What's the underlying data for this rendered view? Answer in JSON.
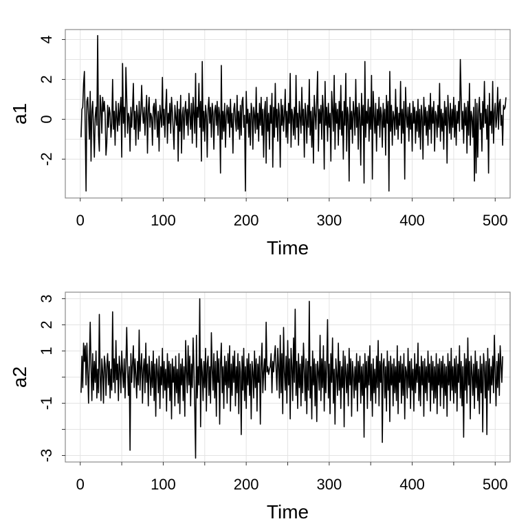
{
  "chart_data": [
    {
      "type": "line",
      "title": "",
      "xlabel": "Time",
      "ylabel": "a1",
      "xlim": [
        -18,
        518
      ],
      "ylim": [
        -3.95,
        4.5
      ],
      "xticks": [
        0,
        100,
        200,
        300,
        400,
        500
      ],
      "xtick_labels": [
        "0",
        "100",
        "200",
        "300",
        "400",
        "500"
      ],
      "yticks": [
        -2,
        0,
        2,
        4
      ],
      "ytick_labels": [
        "-2",
        "0",
        "2",
        "4"
      ],
      "grid": true,
      "series": [
        {
          "color": "#000000",
          "x_start": 1,
          "x_step": 1,
          "values": [
            -0.9,
            0.5,
            0.6,
            1.8,
            2.4,
            -0.5,
            -3.6,
            0.9,
            1.1,
            0.2,
            -1.0,
            1.4,
            -2.1,
            0.4,
            0.9,
            -0.5,
            -1.9,
            0.1,
            0.6,
            -0.3,
            4.2,
            -0.8,
            -1.6,
            1.2,
            0.6,
            -0.7,
            1.1,
            0.4,
            0.9,
            0.2,
            -1.8,
            -1.2,
            0.7,
            -0.4,
            0.6,
            0.3,
            -0.9,
            -0.2,
            2.0,
            -0.5,
            0.4,
            -1.3,
            0.9,
            0.1,
            -0.6,
            0.8,
            -0.3,
            0.5,
            1.1,
            -1.9,
            2.8,
            -0.2,
            0.6,
            -0.9,
            2.6,
            1.1,
            -0.7,
            0.3,
            0.1,
            -1.6,
            0.6,
            -0.4,
            0.5,
            1.8,
            -0.5,
            0.4,
            -1.3,
            0.7,
            0.2,
            -1.0,
            0.9,
            -0.6,
            0.3,
            1.7,
            0.4,
            -0.2,
            0.6,
            -0.8,
            0.3,
            1.2,
            -1.7,
            0.5,
            1.1,
            -0.4,
            0.3,
            0.1,
            -1.3,
            0.6,
            0.8,
            -0.5,
            1.0,
            0.2,
            -0.9,
            0.4,
            -1.6,
            0.7,
            0.1,
            -0.4,
            2.1,
            -0.3,
            0.5,
            -0.9,
            0.6,
            1.5,
            -1.2,
            0.3,
            -0.2,
            0.8,
            -0.7,
            1.1,
            0.4,
            -0.5,
            -1.5,
            0.7,
            0.1,
            -0.3,
            0.9,
            -2.1,
            0.5,
            -0.6,
            1.2,
            -1.7,
            0.2,
            0.6,
            -1.0,
            0.4,
            0.9,
            -0.3,
            0.5,
            -0.8,
            1.3,
            0.2,
            -0.5,
            0.8,
            -1.2,
            1.1,
            0.3,
            -0.7,
            2.3,
            -1.4,
            0.6,
            0.1,
            1.8,
            -0.4,
            0.9,
            -2.1,
            2.9,
            -0.6,
            0.4,
            -1.1,
            0.7,
            0.2,
            -1.9,
            0.5,
            1.1,
            -0.2,
            0.6,
            -0.9,
            0.8,
            0.3,
            -1.5,
            0.4,
            0.7,
            -0.3,
            0.9,
            -0.8,
            0.6,
            0.2,
            -2.7,
            2.7,
            -1.0,
            0.4,
            -0.6,
            0.8,
            -1.4,
            0.2,
            0.7,
            -0.2,
            0.6,
            -0.9,
            1.0,
            -0.4,
            0.3,
            -1.7,
            0.5,
            0.8,
            -0.1,
            -0.6,
            1.2,
            -0.5,
            0.4,
            -1.0,
            0.7,
            -0.8,
            0.9,
            1.1,
            -0.4,
            0.2,
            -3.6,
            1.4,
            -0.2,
            0.5,
            -0.9,
            0.3,
            -1.3,
            0.8,
            0.4,
            -1.5,
            0.6,
            0.2,
            -0.7,
            1.6,
            -0.5,
            0.3,
            -1.1,
            0.8,
            -0.3,
            1.1,
            -0.8,
            0.5,
            -1.9,
            0.4,
            0.9,
            -2.2,
            1.1,
            -0.6,
            0.3,
            -1.5,
            0.7,
            -0.2,
            1.3,
            -2.4,
            0.6,
            -0.9,
            1.8,
            -0.4,
            0.5,
            -1.1,
            0.8,
            0.2,
            -2.4,
            1.0,
            -0.3,
            0.7,
            -0.6,
            0.2,
            1.5,
            -0.9,
            0.4,
            -1.2,
            0.8,
            -0.2,
            2.3,
            -1.4,
            0.5,
            0.2,
            -0.8,
            0.6,
            -1.0,
            2.2,
            -0.4,
            0.3,
            -1.3,
            0.9,
            0.1,
            -0.7,
            1.6,
            -0.3,
            0.5,
            -1.9,
            0.8,
            0.2,
            -1.2,
            0.7,
            -0.4,
            2.0,
            -0.8,
            0.4,
            -1.4,
            0.6,
            -2.2,
            1.2,
            0.3,
            -0.5,
            0.9,
            2.4,
            -1.6,
            0.5,
            -0.2,
            0.7,
            -1.0,
            1.2,
            0.4,
            -2.5,
            1.9,
            -0.3,
            0.6,
            -1.1,
            0.8,
            -0.4,
            0.3,
            -2.1,
            1.4,
            0.5,
            -0.6,
            2.2,
            -1.5,
            0.8,
            -0.2,
            0.5,
            -1.3,
            0.9,
            -0.5,
            1.7,
            -0.8,
            0.4,
            -2.0,
            0.9,
            -0.3,
            2.3,
            -1.6,
            0.6,
            0.2,
            -3.1,
            1.1,
            -0.5,
            0.4,
            -1.2,
            0.9,
            0.3,
            -0.8,
            2.0,
            -0.4,
            0.6,
            -1.5,
            0.8,
            0.1,
            -2.3,
            1.3,
            -0.3,
            0.7,
            -3.2,
            2.9,
            -0.9,
            0.4,
            -0.2,
            1.0,
            -1.1,
            0.6,
            -0.5,
            2.2,
            -3.0,
            1.4,
            0.2,
            -0.7,
            0.8,
            -1.6,
            0.5,
            -0.3,
            1.1,
            -0.9,
            0.6,
            0.2,
            -1.4,
            0.8,
            -0.4,
            0.5,
            -1.8,
            1.2,
            -0.2,
            0.9,
            -3.6,
            2.4,
            -0.6,
            0.7,
            -1.3,
            0.4,
            0.1,
            -0.8,
            1.5,
            -0.5,
            0.6,
            -1.0,
            0.3,
            -0.3,
            1.9,
            -1.2,
            0.5,
            -0.7,
            0.9,
            -3.0,
            1.6,
            0.2,
            -0.4,
            0.6,
            -1.1,
            0.8,
            -0.5,
            0.3,
            -1.6,
            0.9,
            -0.2,
            0.6,
            -1.2,
            0.4,
            -0.6,
            1.0,
            -0.9,
            0.5,
            -1.5,
            0.7,
            0.1,
            -2.0,
            1.1,
            -0.3,
            0.6,
            -0.8,
            0.4,
            -1.3,
            0.7,
            -0.5,
            1.3,
            -1.2,
            0.6,
            -0.2,
            0.9,
            -1.6,
            0.4,
            0.2,
            -0.9,
            0.7,
            -0.4,
            1.8,
            -1.1,
            0.5,
            -0.6,
            0.3,
            -1.5,
            0.9,
            -0.3,
            0.6,
            -2.2,
            1.2,
            0.2,
            -0.7,
            0.8,
            -1.0,
            0.5,
            -0.4,
            1.1,
            -0.9,
            0.7,
            -1.3,
            0.4,
            -0.2,
            0.9,
            -0.6,
            3.0,
            1.1,
            -0.5,
            0.4,
            -1.2,
            0.8,
            -0.3,
            0.6,
            -1.7,
            0.9,
            -0.8,
            1.8,
            -1.3,
            0.4,
            0.1,
            -0.9,
            0.6,
            -3.1,
            1.0,
            -2.7,
            0.8,
            -1.9,
            0.4,
            1.1,
            -0.5,
            0.3,
            -1.6,
            0.9,
            -0.4,
            1.9,
            -0.2,
            0.5,
            -1.0,
            0.7,
            -2.7,
            1.3,
            -0.3,
            0.4,
            -0.7,
            1.9,
            -1.2,
            0.3,
            0.8,
            -0.4,
            0.1,
            1.6,
            -0.5,
            0.8,
            1.0,
            -0.3,
            0.2,
            -1.3,
            0.7,
            0.5,
            0.6,
            1.1
          ]
        }
      ]
    },
    {
      "type": "line",
      "title": "",
      "xlabel": "Time",
      "ylabel": "a2",
      "xlim": [
        -18,
        518
      ],
      "ylim": [
        -3.25,
        3.25
      ],
      "xticks": [
        0,
        100,
        200,
        300,
        400,
        500
      ],
      "xtick_labels": [
        "0",
        "100",
        "200",
        "300",
        "400",
        "500"
      ],
      "yticks": [
        -3,
        -1,
        1,
        2,
        3
      ],
      "ytick_labels": [
        "-3",
        "-1",
        "1",
        "2",
        "3"
      ],
      "minor_yticks": [
        -2,
        0
      ],
      "grid": true,
      "series": [
        {
          "color": "#000000",
          "x_start": 1,
          "x_step": 1,
          "values": [
            -0.6,
            0.8,
            -0.4,
            1.3,
            0.6,
            1.2,
            -0.3,
            1.3,
            0.2,
            -1.0,
            0.7,
            2.1,
            0.4,
            -0.9,
            0.9,
            -0.5,
            0.6,
            -0.2,
            1.0,
            -0.8,
            0.3,
            -0.6,
            2.4,
            0.1,
            -0.9,
            0.7,
            0.2,
            -1.0,
            0.8,
            0.5,
            -0.7,
            0.4,
            0.9,
            -0.3,
            0.6,
            -0.8,
            0.3,
            -0.5,
            2.5,
            -0.2,
            0.7,
            -0.6,
            1.4,
            -0.1,
            0.5,
            -0.9,
            0.8,
            0.3,
            -0.6,
            1.0,
            0.2,
            -0.4,
            0.7,
            -0.8,
            0.5,
            1.9,
            0.3,
            -0.7,
            0.4,
            -2.8,
            0.9,
            -0.2,
            0.5,
            1.2,
            -0.4,
            0.7,
            0.1,
            -0.8,
            0.6,
            -0.3,
            1.8,
            -0.5,
            0.4,
            0.9,
            -1.0,
            0.3,
            0.7,
            -0.6,
            1.3,
            -0.2,
            0.5,
            -1.1,
            0.8,
            0.1,
            -0.7,
            0.6,
            -0.4,
            1.0,
            -0.9,
            0.5,
            -1.5,
            0.7,
            0.2,
            -0.6,
            0.8,
            -1.2,
            0.4,
            -0.3,
            1.1,
            -0.8,
            0.6,
            -0.5,
            0.3,
            -1.3,
            0.9,
            -0.4,
            0.6,
            -0.9,
            0.5,
            -1.6,
            0.7,
            -0.2,
            0.4,
            -1.1,
            0.8,
            -0.6,
            0.3,
            -1.0,
            0.9,
            -1.4,
            0.5,
            -0.3,
            0.7,
            -0.9,
            0.4,
            -1.5,
            1.4,
            0.2,
            -0.6,
            1.2,
            -0.3,
            0.8,
            -1.1,
            0.5,
            -0.4,
            1.5,
            0.3,
            -1.2,
            -3.1,
            1.6,
            -0.8,
            0.4,
            -0.3,
            3.0,
            -1.9,
            0.7,
            0.2,
            -0.9,
            0.6,
            -0.4,
            1.1,
            -1.3,
            0.5,
            0.8,
            -0.7,
            0.4,
            -1.0,
            1.7,
            0.3,
            -0.5,
            0.9,
            -0.8,
            0.6,
            -1.5,
            1.0,
            -0.2,
            0.7,
            -1.8,
            0.5,
            1.3,
            -0.6,
            0.4,
            -1.2,
            0.8,
            -0.3,
            0.6,
            -1.0,
            0.9,
            -0.4,
            1.2,
            -1.3,
            0.5,
            -0.7,
            0.8,
            -0.2,
            1.0,
            -1.1,
            0.4,
            -0.6,
            0.9,
            -1.4,
            0.6,
            0.2,
            -2.2,
            0.8,
            -0.5,
            1.1,
            -0.9,
            0.4,
            -1.2,
            0.7,
            -0.3,
            0.9,
            -0.7,
            0.5,
            -1.6,
            0.6,
            0.2,
            -0.8,
            1.0,
            -0.4,
            0.7,
            -1.3,
            0.5,
            -0.2,
            0.8,
            -1.8,
            0.4,
            1.3,
            -0.6,
            0.2,
            0.7,
            -0.5,
            2.1,
            0.2,
            0.4,
            0.1,
            0.3,
            0.4,
            0.9,
            -0.6,
            0.6,
            0.2,
            0.8,
            1.2,
            0.3,
            -0.5,
            1.1,
            0.4,
            -0.8,
            1.6,
            -0.6,
            0.9,
            -1.4,
            1.9,
            0.2,
            -0.5,
            0.8,
            -1.0,
            1.4,
            -0.3,
            0.7,
            -1.6,
            1.1,
            0.4,
            -0.9,
            1.5,
            -0.2,
            2.6,
            -0.7,
            0.6,
            -1.2,
            0.9,
            -0.4,
            0.5,
            -1.1,
            0.8,
            -0.6,
            1.3,
            0.3,
            -0.9,
            0.7,
            -1.4,
            0.6,
            -0.5,
            2.9,
            -0.8,
            0.4,
            -1.6,
            1.0,
            -0.3,
            0.7,
            -1.1,
            0.5,
            -1.7,
            0.6,
            0.2,
            -0.5,
            1.6,
            -0.9,
            0.7,
            -0.4,
            1.2,
            -1.3,
            0.6,
            -0.6,
            0.4,
            2.2,
            -0.8,
            0.5,
            -1.4,
            0.9,
            -0.2,
            1.5,
            -1.0,
            0.3,
            -1.8,
            0.7,
            0.1,
            -0.7,
            1.3,
            -0.5,
            0.6,
            -1.2,
            0.4,
            -0.4,
            1.0,
            -1.9,
            0.8,
            0.2,
            -0.6,
            0.5,
            -1.1,
            1.1,
            -0.3,
            0.7,
            -1.5,
            0.6,
            0.1,
            -0.8,
            0.4,
            -0.5,
            0.9,
            -1.3,
            0.6,
            -0.2,
            0.8,
            -1.0,
            0.4,
            -0.7,
            0.5,
            -2.3,
            0.9,
            -0.4,
            0.6,
            -1.2,
            0.8,
            -0.3,
            1.2,
            -0.9,
            0.5,
            -1.5,
            0.7,
            -0.6,
            0.3,
            -1.0,
            0.8,
            -0.4,
            1.4,
            -1.1,
            0.6,
            -0.2,
            0.9,
            -2.5,
            0.5,
            0.7,
            -0.8,
            0.4,
            -1.3,
            1.0,
            -0.5,
            0.6,
            -1.7,
            0.8,
            -0.3,
            0.5,
            -1.1,
            0.7,
            -0.6,
            0.4,
            -0.9,
            1.2,
            -1.4,
            0.6,
            -0.2,
            0.8,
            -1.0,
            0.5,
            -0.7,
            0.9,
            -1.6,
            0.4,
            0.2,
            -0.8,
            1.1,
            -0.4,
            0.6,
            -1.2,
            0.7,
            -0.5,
            0.3,
            -1.3,
            0.9,
            -0.6,
            0.5,
            -0.2,
            1.3,
            -0.9,
            0.4,
            -1.1,
            0.8,
            -0.3,
            0.6,
            -1.5,
            0.7,
            -0.6,
            0.4,
            -0.9,
            1.0,
            -0.2,
            0.5,
            -1.3,
            0.8,
            -0.5,
            0.6,
            -1.0,
            0.4,
            -0.8,
            0.9,
            -1.4,
            0.5,
            -0.3,
            0.7,
            -1.1,
            0.6,
            -0.4,
            0.8,
            -1.2,
            0.5,
            -0.7,
            0.4,
            -1.5,
            0.9,
            -0.3,
            0.6,
            -0.9,
            1.1,
            -0.5,
            0.4,
            -1.0,
            0.7,
            -0.6,
            0.8,
            -1.3,
            0.5,
            -0.2,
            1.2,
            -0.8,
            0.6,
            -1.1,
            0.4,
            -2.3,
            0.9,
            -0.5,
            0.7,
            -1.0,
            1.5,
            -0.3,
            0.6,
            -1.6,
            0.8,
            0.2,
            -0.7,
            0.5,
            -1.2,
            1.0,
            -0.4,
            0.6,
            -0.9,
            0.3,
            -1.4,
            0.8,
            -0.6,
            0.5,
            -2.1,
            0.9,
            0.4,
            -0.8,
            0.6,
            -2.2,
            1.1,
            -0.5,
            0.7,
            -1.0,
            0.4,
            -0.3,
            0.8,
            -0.6,
            1.6,
            0.2,
            -1.1,
            0.6,
            -0.4,
            0.9,
            -0.7,
            1.2,
            0.5,
            -0.2,
            0.8
          ]
        }
      ]
    }
  ]
}
